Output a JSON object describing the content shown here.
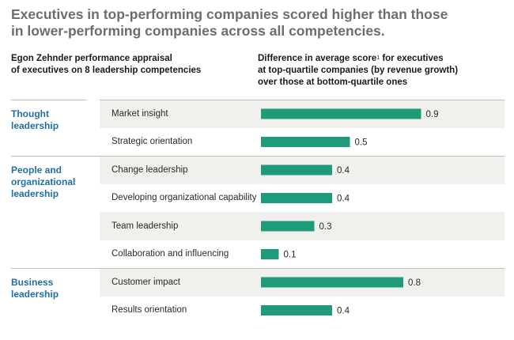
{
  "title_lines": [
    "Executives in top-performing companies scored higher than those",
    "in lower-performing companies across all competencies."
  ],
  "left_header": [
    "Egon Zehnder performance appraisal",
    "of executives on 8 leadership competencies"
  ],
  "right_header": {
    "line1_pre": "Difference in average score",
    "footnote_mark": "1",
    "line1_post": " for executives",
    "line2": "at top-quartile companies (by revenue growth)",
    "line3": "over those at bottom-quartile ones"
  },
  "groups": [
    {
      "label_lines": [
        "Thought",
        "leadership"
      ]
    },
    {
      "label_lines": [
        "People and",
        "organizational",
        "leadership"
      ]
    },
    {
      "label_lines": [
        "Business",
        "leadership"
      ]
    }
  ],
  "colors": {
    "bar": "#1f9a7a",
    "group_label": "#1e6fa8",
    "title": "#6d6d6d",
    "shade": "#f0f0ec"
  },
  "chart_data": {
    "type": "bar",
    "orientation": "horizontal",
    "categories": [
      "Market insight",
      "Strategic orientation",
      "Change leadership",
      "Developing organizational capability",
      "Team leadership",
      "Collaboration and influencing",
      "Customer impact",
      "Results orientation"
    ],
    "groups": [
      0,
      0,
      1,
      1,
      1,
      1,
      2,
      2
    ],
    "values": [
      0.9,
      0.5,
      0.4,
      0.4,
      0.3,
      0.1,
      0.8,
      0.4
    ],
    "value_labels": [
      "0.9",
      "0.5",
      "0.4",
      "0.4",
      "0.3",
      "0.1",
      "0.8",
      "0.4"
    ],
    "xlim": [
      0,
      1.0
    ],
    "grid": false,
    "legend": "none"
  }
}
